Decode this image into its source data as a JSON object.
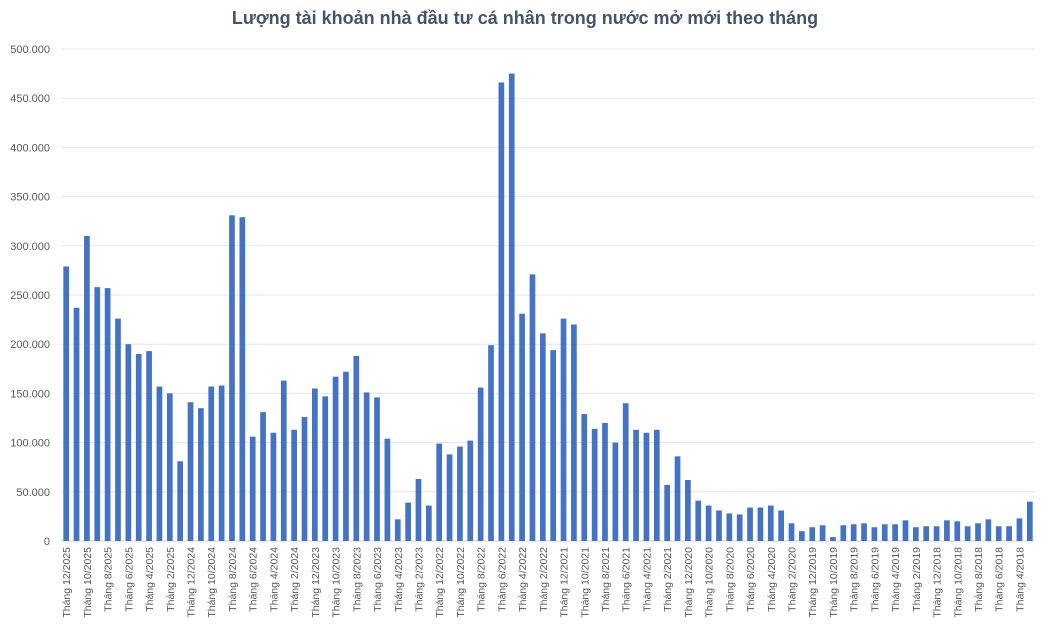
{
  "chart_data": {
    "type": "bar",
    "title": "Lượng tài khoản nhà đầu tư cá nhân trong nước mở mới theo tháng",
    "xlabel": "",
    "ylabel": "",
    "ylim": [
      0,
      500000
    ],
    "yticks": [
      "0",
      "50.000",
      "100.000",
      "150.000",
      "200.000",
      "250.000",
      "300.000",
      "350.000",
      "400.000",
      "450.000",
      "500.000"
    ],
    "grid": true,
    "bar_color": "#4472c4",
    "categories": [
      "Tháng 12/2025",
      "Tháng 11/2025",
      "Tháng 10/2025",
      "Tháng 9/2025",
      "Tháng 8/2025",
      "Tháng 7/2025",
      "Tháng 6/2025",
      "Tháng 5/2025",
      "Tháng 4/2025",
      "Tháng 3/2025",
      "Tháng 2/2025",
      "Tháng 1/2025",
      "Tháng 12/2024",
      "Tháng 11/2024",
      "Tháng 10/2024",
      "Tháng 9/2024",
      "Tháng 8/2024",
      "Tháng 7/2024",
      "Tháng 6/2024",
      "Tháng 5/2024",
      "Tháng 4/2024",
      "Tháng 3/2024",
      "Tháng 2/2024",
      "Tháng 1/2024",
      "Tháng 12/2023",
      "Tháng 11/2023",
      "Tháng 10/2023",
      "Tháng 9/2023",
      "Tháng 8/2023",
      "Tháng 7/2023",
      "Tháng 6/2023",
      "Tháng 5/2023",
      "Tháng 4/2023",
      "Tháng 3/2023",
      "Tháng 2/2023",
      "Tháng 1/2023",
      "Tháng 12/2022",
      "Tháng 11/2022",
      "Tháng 10/2022",
      "Tháng 9/2022",
      "Tháng 8/2022",
      "Tháng 7/2022",
      "Tháng 6/2022",
      "Tháng 5/2022",
      "Tháng 4/2022",
      "Tháng 3/2022",
      "Tháng 2/2022",
      "Tháng 1/2022",
      "Tháng 12/2021",
      "Tháng 11/2021",
      "Tháng 10/2021",
      "Tháng 9/2021",
      "Tháng 8/2021",
      "Tháng 7/2021",
      "Tháng 6/2021",
      "Tháng 5/2021",
      "Tháng 4/2021",
      "Tháng 3/2021",
      "Tháng 2/2021",
      "Tháng 1/2021",
      "Tháng 12/2020",
      "Tháng 11/2020",
      "Tháng 10/2020",
      "Tháng 9/2020",
      "Tháng 8/2020",
      "Tháng 7/2020",
      "Tháng 6/2020",
      "Tháng 5/2020",
      "Tháng 4/2020",
      "Tháng 3/2020",
      "Tháng 2/2020",
      "Tháng 1/2020",
      "Tháng 12/2019",
      "Tháng 11/2019",
      "Tháng 10/2019",
      "Tháng 9/2019",
      "Tháng 8/2019",
      "Tháng 7/2019",
      "Tháng 6/2019",
      "Tháng 5/2019",
      "Tháng 4/2019",
      "Tháng 3/2019",
      "Tháng 2/2019",
      "Tháng 1/2019",
      "Tháng 12/2018",
      "Tháng 11/2018",
      "Tháng 10/2018",
      "Tháng 9/2018",
      "Tháng 8/2018",
      "Tháng 7/2018",
      "Tháng 6/2018",
      "Tháng 5/2018",
      "Tháng 4/2018",
      "Tháng 3/2018"
    ],
    "values": [
      279000,
      237000,
      310000,
      258000,
      257000,
      226000,
      200000,
      190000,
      193000,
      157000,
      150000,
      81000,
      141000,
      135000,
      157000,
      158000,
      331000,
      329000,
      106000,
      131000,
      110000,
      163000,
      113000,
      126000,
      155000,
      147000,
      167000,
      172000,
      188000,
      151000,
      146000,
      104000,
      22000,
      39000,
      63000,
      36000,
      99000,
      88000,
      96000,
      102000,
      156000,
      199000,
      466000,
      475000,
      231000,
      271000,
      211000,
      194000,
      226000,
      220000,
      129000,
      114000,
      120000,
      100000,
      140000,
      113000,
      110000,
      113000,
      57000,
      86000,
      62000,
      41000,
      36000,
      31000,
      28000,
      27000,
      34000,
      34000,
      36000,
      31000,
      18000,
      10000,
      14000,
      16000,
      4000,
      16000,
      17000,
      18000,
      14000,
      17000,
      17000,
      21000,
      14000,
      15000,
      15000,
      21000,
      20000,
      15000,
      18000,
      22000,
      15000,
      15000,
      23000,
      40000
    ]
  }
}
